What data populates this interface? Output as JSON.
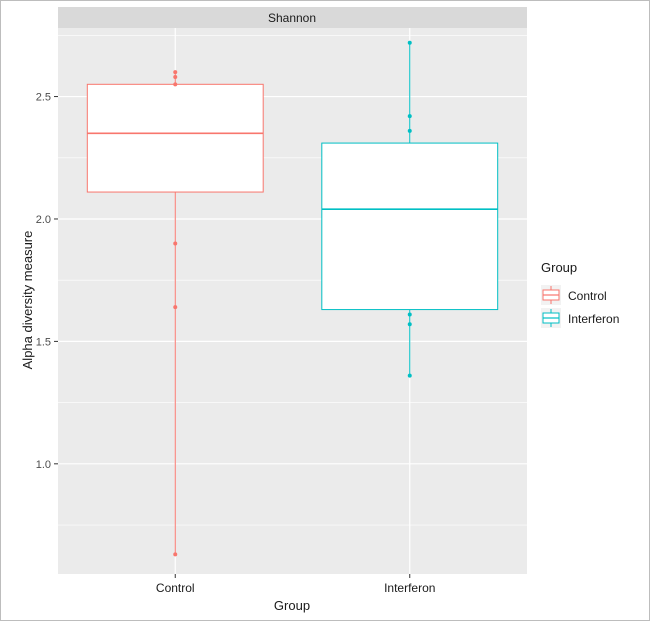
{
  "chart_data": {
    "type": "box",
    "facet_title": "Shannon",
    "xlabel": "Group",
    "ylabel": "Alpha diversity measure",
    "ylim": [
      0.55,
      2.78
    ],
    "y_ticks": [
      1.0,
      1.5,
      2.0,
      2.5
    ],
    "y_tick_labels": [
      "1.0",
      "1.5",
      "2.0",
      "2.5"
    ],
    "categories": [
      "Control",
      "Interferon"
    ],
    "legend": {
      "title": "Group",
      "position": "right",
      "entries": [
        "Control",
        "Interferon"
      ]
    },
    "series": [
      {
        "name": "Control",
        "color": "#F8766D",
        "q1": 2.11,
        "median": 2.35,
        "q3": 2.55,
        "whisker_low": 0.63,
        "whisker_high": 2.6,
        "points": [
          2.6,
          2.58,
          2.55,
          1.9,
          1.64,
          0.63
        ]
      },
      {
        "name": "Interferon",
        "color": "#00BFC4",
        "q1": 1.63,
        "median": 2.04,
        "q3": 2.31,
        "whisker_low": 1.36,
        "whisker_high": 2.72,
        "points": [
          2.72,
          2.42,
          2.36,
          1.61,
          1.57,
          1.36
        ]
      }
    ],
    "grid": true
  }
}
